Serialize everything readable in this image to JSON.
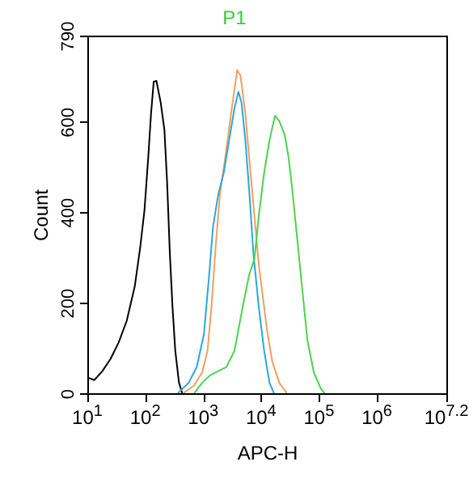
{
  "chart_data": {
    "type": "line",
    "title": "P1",
    "xlabel": "APC-H",
    "ylabel": "Count",
    "log": "x",
    "grid": false,
    "legend": false,
    "marker": "none",
    "line_style": "solid",
    "xlim": [
      10,
      15848932
    ],
    "ylim": [
      0,
      790
    ],
    "xticks": [
      {
        "value": 10,
        "label": "10$^{1}$"
      },
      {
        "value": 100,
        "label": "10$^{2}$"
      },
      {
        "value": 1000,
        "label": "10$^{3}$"
      },
      {
        "value": 10000,
        "label": "10$^{4}$"
      },
      {
        "value": 100000,
        "label": "10$^{5}$"
      },
      {
        "value": 1000000,
        "label": "10$^{6}$"
      },
      {
        "value": 15848932,
        "label": "10$^{7.2}$"
      }
    ],
    "yticks": [
      0,
      200,
      400,
      600,
      790
    ],
    "series": [
      {
        "color": "#000000",
        "x": [
          10,
          13.2,
          18.2,
          25.2,
          34.7,
          47.9,
          66.1,
          81.7,
          97,
          113,
          126,
          140,
          156,
          185,
          214,
          239,
          266,
          296,
          330,
          383,
          436
        ],
        "values": [
          35,
          29,
          49,
          76,
          112,
          160,
          237,
          321,
          404,
          523,
          618,
          688,
          690,
          642,
          583,
          464,
          309,
          190,
          94,
          23,
          0
        ]
      },
      {
        "color": "#f0a060",
        "x": [
          454,
          698,
          962,
          1190,
          1390,
          1640,
          1950,
          2420,
          3130,
          3870,
          4410,
          5350,
          6210,
          7380,
          9140,
          12600,
          15600,
          20700,
          27900
        ],
        "values": [
          0,
          17,
          46,
          94,
          190,
          321,
          440,
          523,
          630,
          714,
          702,
          618,
          523,
          416,
          285,
          142,
          70,
          23,
          0
        ]
      },
      {
        "color": "#29a8e0",
        "x": [
          366,
          562,
          776,
          1030,
          1270,
          1480,
          1830,
          2270,
          2810,
          3480,
          4050,
          4600,
          5350,
          6210,
          7380,
          9140,
          11300,
          14000,
          16700
        ],
        "values": [
          0,
          23,
          58,
          130,
          261,
          368,
          440,
          487,
          559,
          630,
          666,
          642,
          559,
          452,
          309,
          190,
          94,
          23,
          0
        ]
      },
      {
        "color": "#4cd44c",
        "x": [
          698,
          962,
          1330,
          1830,
          2520,
          3480,
          4810,
          6210,
          7690,
          9140,
          11300,
          14000,
          17400,
          20700,
          25600,
          29700,
          34500,
          41000,
          50800,
          63000,
          81500,
          108000,
          125000
        ],
        "values": [
          0,
          23,
          40,
          49,
          58,
          94,
          190,
          261,
          297,
          392,
          487,
          559,
          613,
          601,
          571,
          523,
          452,
          356,
          237,
          118,
          46,
          10,
          0
        ]
      }
    ]
  }
}
